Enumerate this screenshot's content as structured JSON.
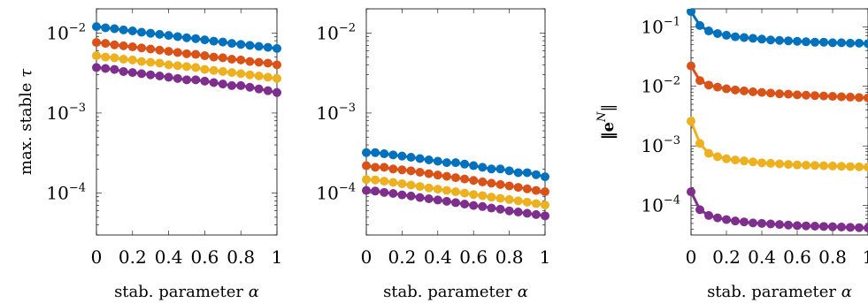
{
  "chart_data": [
    {
      "type": "line",
      "title": "",
      "xlabel": "stab. parameter α",
      "ylabel": "max. stable τ",
      "yscale": "log",
      "xlim": [
        0,
        1
      ],
      "ylim": [
        3e-05,
        0.02
      ],
      "xticks": [
        0,
        0.2,
        0.4,
        0.6,
        0.8,
        1
      ],
      "xtick_labels": [
        "0",
        "0.2",
        "0.4",
        "0.6",
        "0.8",
        "1"
      ],
      "yticks": [
        0.0001,
        0.001,
        0.01
      ],
      "ytick_labels": [
        {
          "base": "10",
          "exp": "−4"
        },
        {
          "base": "10",
          "exp": "−3"
        },
        {
          "base": "10",
          "exp": "−2"
        }
      ],
      "x": [
        0,
        0.05,
        0.1,
        0.15,
        0.2,
        0.25,
        0.3,
        0.35,
        0.4,
        0.45,
        0.5,
        0.55,
        0.6,
        0.65,
        0.7,
        0.75,
        0.8,
        0.85,
        0.9,
        0.95,
        1
      ],
      "series": [
        {
          "color": "#0072bd",
          "values": [
            0.012,
            0.0116,
            0.0113,
            0.0109,
            0.0106,
            0.0102,
            0.0099,
            0.0096,
            0.0093,
            0.009,
            0.0087,
            0.0085,
            0.0082,
            0.0079,
            0.0077,
            0.0074,
            0.0072,
            0.007,
            0.0068,
            0.0066,
            0.0064
          ]
        },
        {
          "color": "#d95319",
          "values": [
            0.0076,
            0.0074,
            0.0071,
            0.0069,
            0.0067,
            0.0065,
            0.0063,
            0.0061,
            0.0059,
            0.0057,
            0.0055,
            0.0054,
            0.0052,
            0.005,
            0.0049,
            0.0047,
            0.0046,
            0.0044,
            0.0043,
            0.0042,
            0.004
          ]
        },
        {
          "color": "#edb120",
          "values": [
            0.0052,
            0.005,
            0.0049,
            0.0047,
            0.0046,
            0.0044,
            0.0043,
            0.0042,
            0.004,
            0.0039,
            0.0038,
            0.0037,
            0.0035,
            0.0034,
            0.0033,
            0.0032,
            0.0031,
            0.003,
            0.0029,
            0.0028,
            0.0027
          ]
        },
        {
          "color": "#7e2f8e",
          "values": [
            0.0037,
            0.0036,
            0.0035,
            0.0033,
            0.0032,
            0.0031,
            0.003,
            0.0029,
            0.0028,
            0.0027,
            0.0026,
            0.0026,
            0.0025,
            0.0024,
            0.0023,
            0.0022,
            0.0022,
            0.0021,
            0.002,
            0.0019,
            0.0018
          ]
        }
      ]
    },
    {
      "type": "line",
      "title": "",
      "xlabel": "stab. parameter α",
      "ylabel": "",
      "yscale": "log",
      "xlim": [
        0,
        1
      ],
      "ylim": [
        3e-05,
        0.02
      ],
      "xticks": [
        0,
        0.2,
        0.4,
        0.6,
        0.8,
        1
      ],
      "xtick_labels": [
        "0",
        "0.2",
        "0.4",
        "0.6",
        "0.8",
        "1"
      ],
      "yticks": [
        0.0001,
        0.001,
        0.01
      ],
      "ytick_labels": [
        {
          "base": "10",
          "exp": "−4"
        },
        {
          "base": "10",
          "exp": "−3"
        },
        {
          "base": "10",
          "exp": "−2"
        }
      ],
      "x": [
        0,
        0.05,
        0.1,
        0.15,
        0.2,
        0.25,
        0.3,
        0.35,
        0.4,
        0.45,
        0.5,
        0.55,
        0.6,
        0.65,
        0.7,
        0.75,
        0.8,
        0.85,
        0.9,
        0.95,
        1
      ],
      "series": [
        {
          "color": "#0072bd",
          "values": [
            0.00032,
            0.00032,
            0.00031,
            0.0003,
            0.00029,
            0.00028,
            0.00027,
            0.00026,
            0.00025,
            0.00024,
            0.00024,
            0.00023,
            0.00022,
            0.00021,
            0.0002,
            0.0002,
            0.00019,
            0.00018,
            0.00018,
            0.00017,
            0.00016
          ]
        },
        {
          "color": "#d95319",
          "values": [
            0.00022,
            0.00021,
            0.00021,
            0.0002,
            0.000195,
            0.00019,
            0.000182,
            0.000175,
            0.000168,
            0.000162,
            0.000156,
            0.00015,
            0.000144,
            0.000138,
            0.000133,
            0.000128,
            0.000123,
            0.000118,
            0.000113,
            0.000108,
            0.000104
          ]
        },
        {
          "color": "#edb120",
          "values": [
            0.000148,
            0.000146,
            0.000141,
            0.000136,
            0.000131,
            0.000126,
            0.000121,
            0.000116,
            0.000112,
            0.000108,
            0.000104,
            0.0001,
            9.6e-05,
            9.3e-05,
            8.9e-05,
            8.6e-05,
            8.3e-05,
            8e-05,
            7.7e-05,
            7.4e-05,
            7.1e-05
          ]
        },
        {
          "color": "#7e2f8e",
          "values": [
            0.000108,
            0.000106,
            0.000102,
            9.9e-05,
            9.5e-05,
            9.2e-05,
            8.8e-05,
            8.5e-05,
            8.2e-05,
            7.9e-05,
            7.6e-05,
            7.3e-05,
            7e-05,
            6.8e-05,
            6.5e-05,
            6.3e-05,
            6e-05,
            5.8e-05,
            5.6e-05,
            5.4e-05,
            5.2e-05
          ]
        }
      ]
    },
    {
      "type": "line",
      "title": "",
      "xlabel": "stab. parameter α",
      "ylabel": "‖e^N‖",
      "yscale": "log",
      "xlim": [
        0,
        1
      ],
      "ylim": [
        3.2e-05,
        0.2
      ],
      "xticks": [
        0,
        0.2,
        0.4,
        0.6,
        0.8,
        1
      ],
      "xtick_labels": [
        "0",
        "0.2",
        "0.4",
        "0.6",
        "0.8",
        "1"
      ],
      "yticks": [
        0.0001,
        0.001,
        0.01,
        0.1
      ],
      "ytick_labels": [
        {
          "base": "10",
          "exp": "−4"
        },
        {
          "base": "10",
          "exp": "−3"
        },
        {
          "base": "10",
          "exp": "−2"
        },
        {
          "base": "10",
          "exp": "−1"
        }
      ],
      "x": [
        0,
        0.05,
        0.1,
        0.15,
        0.2,
        0.25,
        0.3,
        0.35,
        0.4,
        0.45,
        0.5,
        0.55,
        0.6,
        0.65,
        0.7,
        0.75,
        0.8,
        0.85,
        0.9,
        0.95,
        1
      ],
      "series": [
        {
          "color": "#0072bd",
          "values": [
            0.18,
            0.105,
            0.085,
            0.077,
            0.072,
            0.068,
            0.066,
            0.064,
            0.062,
            0.06,
            0.059,
            0.058,
            0.057,
            0.056,
            0.055,
            0.055,
            0.054,
            0.054,
            0.053,
            0.053,
            0.052
          ]
        },
        {
          "color": "#d95319",
          "values": [
            0.022,
            0.0125,
            0.0105,
            0.0097,
            0.0091,
            0.0087,
            0.0084,
            0.0081,
            0.0079,
            0.0077,
            0.0075,
            0.0074,
            0.0072,
            0.0071,
            0.007,
            0.0069,
            0.0068,
            0.0067,
            0.0066,
            0.0065,
            0.0064
          ]
        },
        {
          "color": "#edb120",
          "values": [
            0.0026,
            0.0011,
            0.00075,
            0.00066,
            0.00061,
            0.00058,
            0.00056,
            0.00054,
            0.00052,
            0.00051,
            0.0005,
            0.00049,
            0.00048,
            0.000475,
            0.00047,
            0.000465,
            0.00046,
            0.000455,
            0.00045,
            0.000445,
            0.00044
          ]
        },
        {
          "color": "#7e2f8e",
          "values": [
            0.00017,
            8.5e-05,
            6.8e-05,
            6.2e-05,
            5.8e-05,
            5.5e-05,
            5.3e-05,
            5.1e-05,
            5e-05,
            4.9e-05,
            4.8e-05,
            4.7e-05,
            4.6e-05,
            4.55e-05,
            4.5e-05,
            4.45e-05,
            4.4e-05,
            4.35e-05,
            4.3e-05,
            4.25e-05,
            4.2e-05
          ]
        }
      ]
    }
  ]
}
